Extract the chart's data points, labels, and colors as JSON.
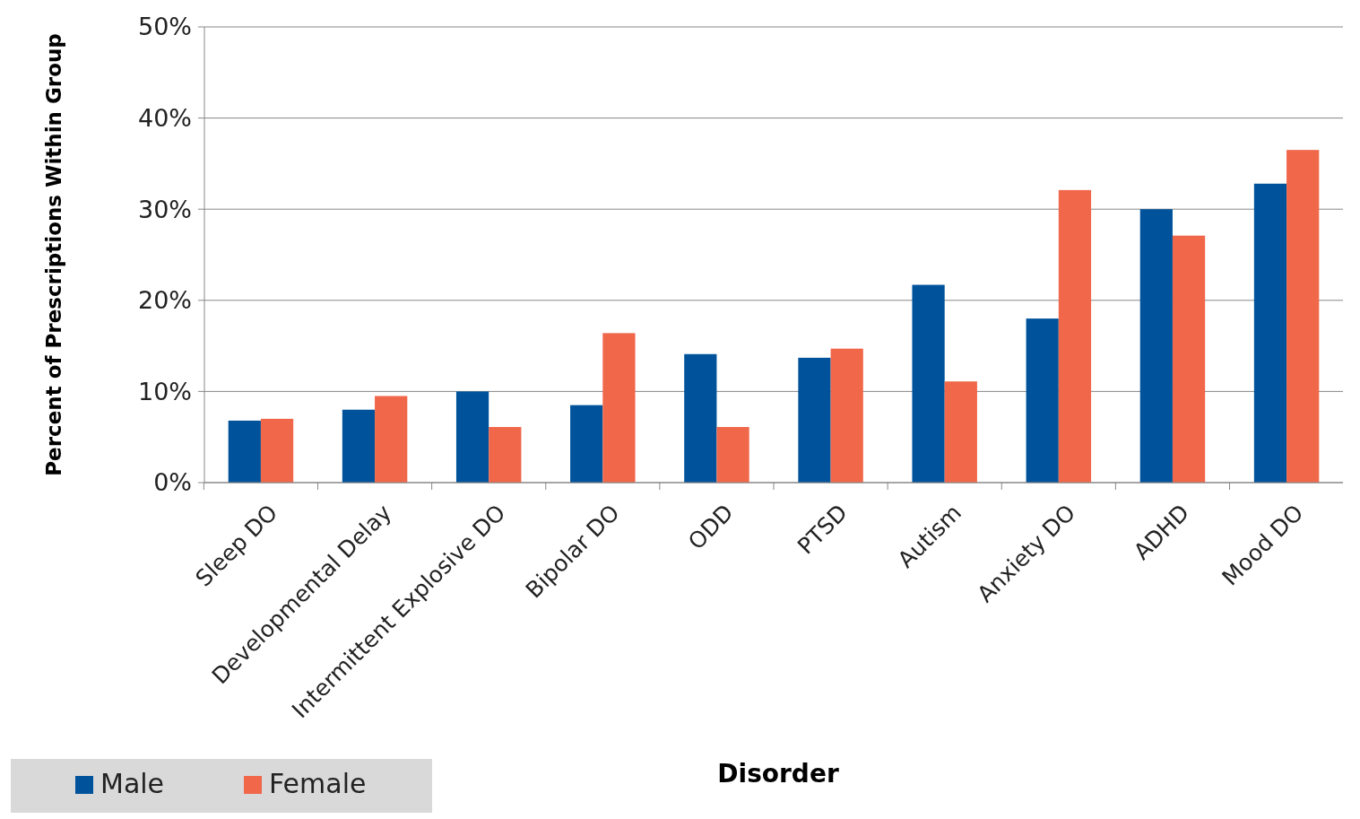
{
  "chart_data": {
    "type": "bar",
    "xlabel": "Disorder",
    "ylabel": "Percent of Prescriptions Within Group",
    "categories": [
      "Sleep DO",
      "Developmental Delay",
      "Intermittent Explosive DO",
      "Bipolar DO",
      "ODD",
      "PTSD",
      "Autism",
      "Anxiety DO",
      "ADHD",
      "Mood DO"
    ],
    "series": [
      {
        "name": "Male",
        "color": "#00539b",
        "values": [
          6.8,
          8.0,
          10.0,
          8.5,
          14.1,
          13.7,
          21.7,
          18.0,
          30.0,
          32.8
        ]
      },
      {
        "name": "Female",
        "color": "#f0674a",
        "values": [
          7.0,
          9.5,
          6.1,
          16.4,
          6.1,
          14.7,
          11.1,
          32.1,
          27.1,
          36.5
        ]
      }
    ],
    "ylim": [
      0,
      50
    ],
    "yticks": [
      {
        "value": 0,
        "label": "0%"
      },
      {
        "value": 10,
        "label": "10%"
      },
      {
        "value": 20,
        "label": "20%"
      },
      {
        "value": 30,
        "label": "30%"
      },
      {
        "value": 40,
        "label": "40%"
      },
      {
        "value": 50,
        "label": "50%"
      }
    ],
    "grid": "y",
    "legend": "bottom left"
  }
}
